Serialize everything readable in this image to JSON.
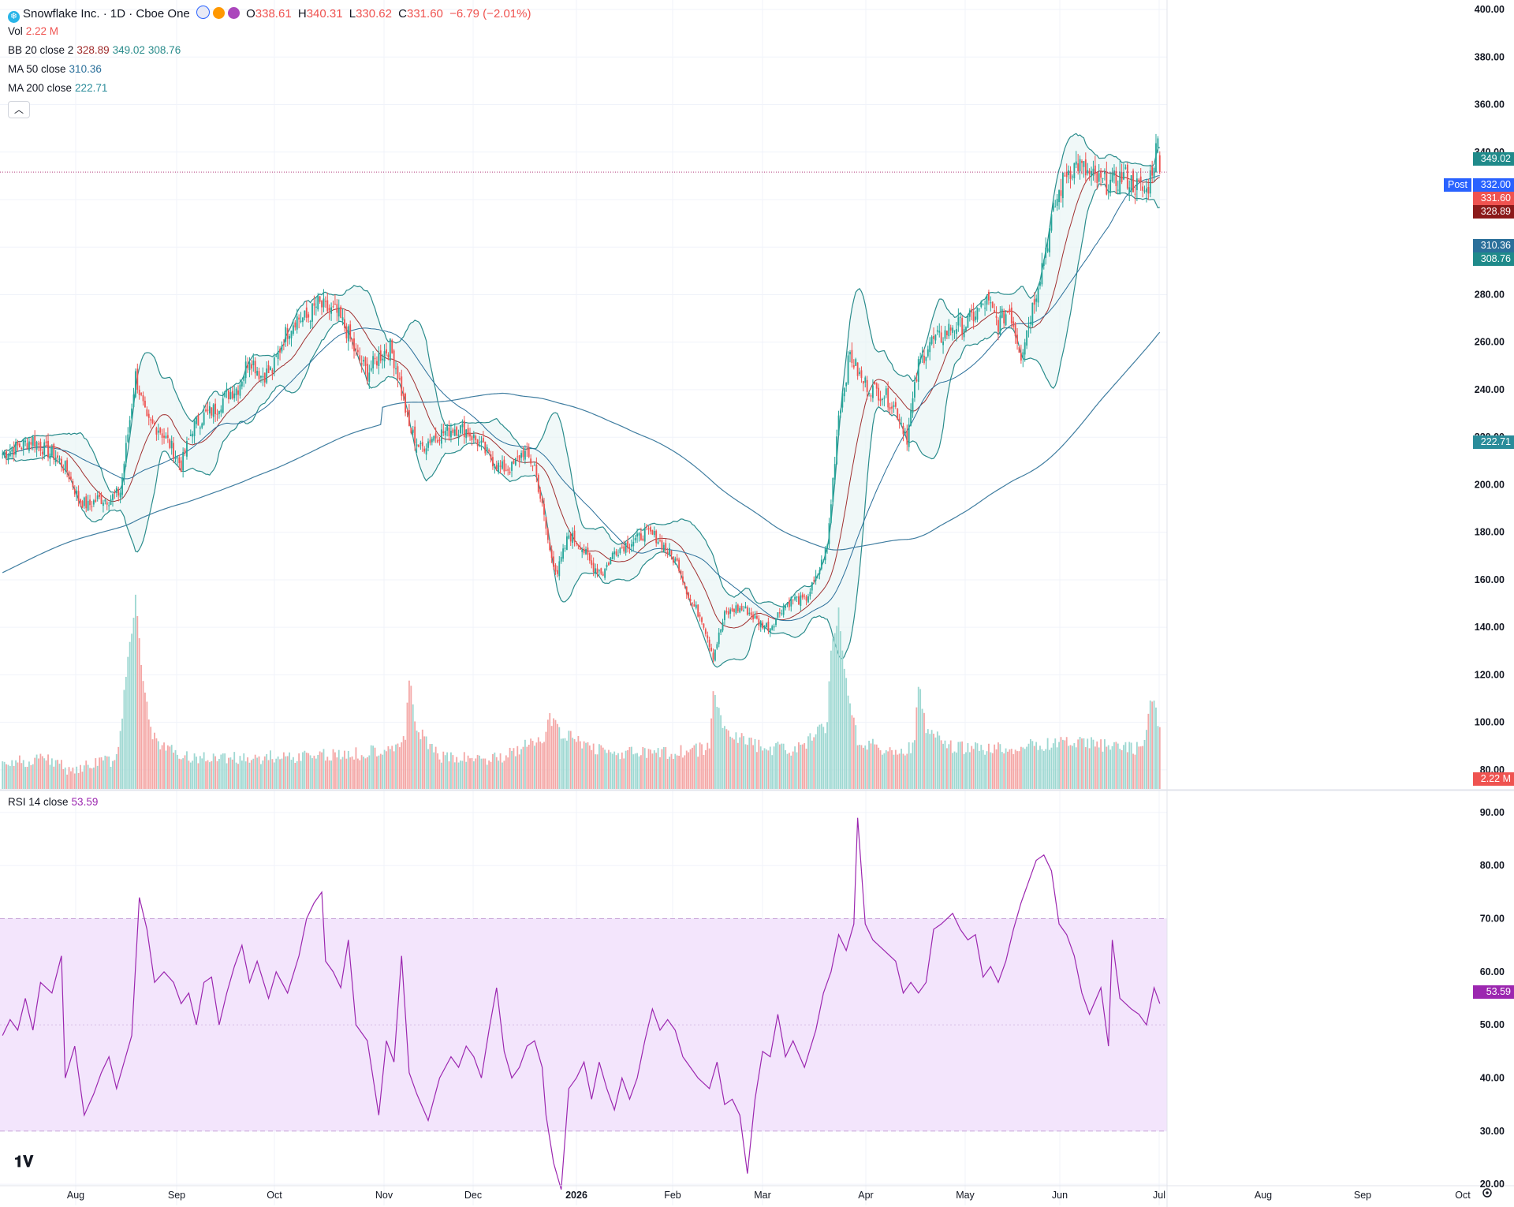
{
  "header": {
    "symbol_title": "Snowflake Inc. · 1D · Cboe One",
    "ohlc": [
      {
        "k": "O",
        "v": "338.61"
      },
      {
        "k": "H",
        "v": "340.31"
      },
      {
        "k": "L",
        "v": "330.62"
      },
      {
        "k": "C",
        "v": "331.60"
      }
    ],
    "change": "−6.79 (−2.01%)",
    "colors": {
      "up": "#26a69a",
      "down": "#ef5350",
      "bb": "#2a8c8c",
      "ma50": "#2a6f9a",
      "ma200": "#3f7da0",
      "rsi": "#9c27b0"
    }
  },
  "indicators": {
    "vol": {
      "label": "Vol",
      "value": "2.22 M"
    },
    "bb": {
      "label": "BB 20 close 2",
      "basis": "328.89",
      "upper": "349.02",
      "lower": "308.76"
    },
    "ma50": {
      "label": "MA 50 close",
      "value": "310.36"
    },
    "ma200": {
      "label": "MA 200 close",
      "value": "222.71"
    },
    "rsi": {
      "label": "RSI 14 close",
      "value": "53.59"
    }
  },
  "price_tags": {
    "post_label": "Post",
    "post_price": "332.00",
    "last": "331.60",
    "bb_upper": "349.02",
    "bb_basis": "328.89",
    "ma50": "310.36",
    "bb_lower": "308.76",
    "ma200": "222.71",
    "volume": "2.22 M",
    "rsi": "53.59"
  },
  "chart_data": {
    "type": "candlestick",
    "price_axis": {
      "ticks": [
        "400.00",
        "380.00",
        "360.00",
        "340.00",
        "320.00",
        "300.00",
        "280.00",
        "260.00",
        "240.00",
        "220.00",
        "200.00",
        "180.00",
        "160.00",
        "140.00",
        "120.00",
        "100.00",
        "80.00"
      ],
      "range": [
        72,
        404
      ]
    },
    "rsi_axis": {
      "ticks": [
        "90.00",
        "80.00",
        "70.00",
        "60.00",
        "50.00",
        "40.00",
        "30.00",
        "20.00"
      ],
      "range": [
        16,
        94
      ],
      "band": [
        30,
        70
      ]
    },
    "time_axis": {
      "labels": [
        "Aug",
        "Sep",
        "Oct",
        "Nov",
        "Dec",
        "2026",
        "Feb",
        "Mar",
        "Apr",
        "May",
        "Jun",
        "Jul",
        "Aug",
        "Sep",
        "Oct"
      ]
    },
    "price_anchors": [
      [
        0,
        213
      ],
      [
        8,
        216
      ],
      [
        16,
        219
      ],
      [
        22,
        215
      ],
      [
        28,
        212
      ],
      [
        34,
        206
      ],
      [
        40,
        194
      ],
      [
        45,
        191
      ],
      [
        50,
        194
      ],
      [
        56,
        194
      ],
      [
        62,
        197
      ],
      [
        70,
        246
      ],
      [
        76,
        226
      ],
      [
        82,
        224
      ],
      [
        88,
        217
      ],
      [
        94,
        208
      ],
      [
        100,
        224
      ],
      [
        106,
        229
      ],
      [
        112,
        232
      ],
      [
        118,
        238
      ],
      [
        124,
        241
      ],
      [
        130,
        254
      ],
      [
        136,
        246
      ],
      [
        142,
        248
      ],
      [
        148,
        262
      ],
      [
        154,
        270
      ],
      [
        160,
        270
      ],
      [
        166,
        276
      ],
      [
        170,
        274
      ],
      [
        176,
        272
      ],
      [
        181,
        265
      ],
      [
        186,
        255
      ],
      [
        192,
        247
      ],
      [
        198,
        254
      ],
      [
        204,
        258
      ],
      [
        208,
        247
      ],
      [
        214,
        224
      ],
      [
        220,
        215
      ],
      [
        226,
        220
      ],
      [
        232,
        222
      ],
      [
        238,
        224
      ],
      [
        244,
        223
      ],
      [
        250,
        218
      ],
      [
        256,
        212
      ],
      [
        262,
        207
      ],
      [
        268,
        207
      ],
      [
        274,
        214
      ],
      [
        280,
        208
      ],
      [
        285,
        186
      ],
      [
        288,
        172
      ],
      [
        292,
        163
      ],
      [
        298,
        179
      ],
      [
        304,
        175
      ],
      [
        310,
        166
      ],
      [
        316,
        163
      ],
      [
        322,
        172
      ],
      [
        328,
        175
      ],
      [
        334,
        177
      ],
      [
        338,
        180
      ],
      [
        344,
        178
      ],
      [
        350,
        172
      ],
      [
        356,
        166
      ],
      [
        362,
        151
      ],
      [
        368,
        144
      ],
      [
        374,
        128
      ],
      [
        380,
        145
      ],
      [
        386,
        148
      ],
      [
        392,
        147
      ],
      [
        398,
        142
      ],
      [
        404,
        140
      ],
      [
        410,
        148
      ],
      [
        416,
        152
      ],
      [
        422,
        151
      ],
      [
        428,
        160
      ],
      [
        434,
        174
      ],
      [
        440,
        230
      ],
      [
        446,
        255
      ],
      [
        452,
        244
      ],
      [
        458,
        240
      ],
      [
        464,
        238
      ],
      [
        470,
        232
      ],
      [
        476,
        220
      ],
      [
        482,
        250
      ],
      [
        488,
        260
      ],
      [
        494,
        262
      ],
      [
        500,
        267
      ],
      [
        506,
        267
      ],
      [
        512,
        272
      ],
      [
        518,
        277
      ],
      [
        524,
        268
      ],
      [
        530,
        274
      ],
      [
        536,
        255
      ],
      [
        542,
        275
      ],
      [
        548,
        296
      ],
      [
        554,
        318
      ],
      [
        560,
        332
      ],
      [
        566,
        335
      ],
      [
        572,
        330
      ],
      [
        578,
        327
      ],
      [
        584,
        327
      ],
      [
        590,
        330
      ],
      [
        596,
        326
      ],
      [
        602,
        323
      ],
      [
        608,
        344
      ],
      [
        612,
        332
      ],
      [
        616,
        330
      ],
      [
        620,
        325
      ],
      [
        624,
        331
      ],
      [
        628,
        331
      ]
    ],
    "volume_anchors": [
      [
        0,
        88
      ],
      [
        8,
        86
      ],
      [
        16,
        87
      ],
      [
        22,
        90
      ],
      [
        28,
        85
      ],
      [
        34,
        84
      ],
      [
        40,
        83
      ],
      [
        50,
        86
      ],
      [
        60,
        87
      ],
      [
        70,
        155
      ],
      [
        74,
        120
      ],
      [
        78,
        100
      ],
      [
        84,
        92
      ],
      [
        100,
        88
      ],
      [
        130,
        88
      ],
      [
        160,
        89
      ],
      [
        190,
        90
      ],
      [
        212,
        95
      ],
      [
        214,
        122
      ],
      [
        218,
        100
      ],
      [
        230,
        88
      ],
      [
        260,
        88
      ],
      [
        285,
        96
      ],
      [
        288,
        105
      ],
      [
        294,
        98
      ],
      [
        320,
        90
      ],
      [
        350,
        90
      ],
      [
        372,
        92
      ],
      [
        374,
        115
      ],
      [
        380,
        100
      ],
      [
        400,
        92
      ],
      [
        420,
        92
      ],
      [
        434,
        102
      ],
      [
        436,
        135
      ],
      [
        440,
        150
      ],
      [
        444,
        120
      ],
      [
        450,
        96
      ],
      [
        470,
        90
      ],
      [
        480,
        93
      ],
      [
        482,
        120
      ],
      [
        486,
        100
      ],
      [
        500,
        92
      ],
      [
        530,
        92
      ],
      [
        560,
        95
      ],
      [
        600,
        92
      ],
      [
        604,
        110
      ],
      [
        606,
        112
      ],
      [
        610,
        95
      ],
      [
        628,
        90
      ]
    ],
    "rsi_anchors": [
      [
        0,
        48
      ],
      [
        4,
        51
      ],
      [
        8,
        49
      ],
      [
        12,
        55
      ],
      [
        16,
        49
      ],
      [
        20,
        58
      ],
      [
        26,
        56
      ],
      [
        31,
        63
      ],
      [
        33,
        40
      ],
      [
        38,
        46
      ],
      [
        43,
        33
      ],
      [
        48,
        37
      ],
      [
        52,
        41
      ],
      [
        56,
        44
      ],
      [
        60,
        38
      ],
      [
        64,
        43
      ],
      [
        68,
        48
      ],
      [
        72,
        74
      ],
      [
        76,
        68
      ],
      [
        80,
        58
      ],
      [
        85,
        60
      ],
      [
        90,
        58
      ],
      [
        94,
        54
      ],
      [
        98,
        56
      ],
      [
        102,
        50
      ],
      [
        106,
        58
      ],
      [
        110,
        59
      ],
      [
        114,
        50
      ],
      [
        118,
        56
      ],
      [
        122,
        61
      ],
      [
        126,
        65
      ],
      [
        130,
        58
      ],
      [
        134,
        62
      ],
      [
        140,
        55
      ],
      [
        144,
        60
      ],
      [
        150,
        56
      ],
      [
        156,
        63
      ],
      [
        160,
        70
      ],
      [
        164,
        73
      ],
      [
        168,
        75
      ],
      [
        170,
        62
      ],
      [
        174,
        60
      ],
      [
        178,
        57
      ],
      [
        182,
        66
      ],
      [
        186,
        50
      ],
      [
        192,
        47
      ],
      [
        198,
        33
      ],
      [
        202,
        47
      ],
      [
        206,
        43
      ],
      [
        210,
        63
      ],
      [
        214,
        41
      ],
      [
        218,
        37
      ],
      [
        224,
        32
      ],
      [
        230,
        40
      ],
      [
        236,
        44
      ],
      [
        240,
        42
      ],
      [
        244,
        46
      ],
      [
        248,
        44
      ],
      [
        252,
        40
      ],
      [
        256,
        49
      ],
      [
        260,
        57
      ],
      [
        264,
        45
      ],
      [
        268,
        40
      ],
      [
        272,
        42
      ],
      [
        276,
        46
      ],
      [
        280,
        47
      ],
      [
        284,
        42
      ],
      [
        286,
        33
      ],
      [
        290,
        24
      ],
      [
        294,
        19
      ],
      [
        298,
        38
      ],
      [
        302,
        40
      ],
      [
        306,
        43
      ],
      [
        310,
        36
      ],
      [
        314,
        43
      ],
      [
        318,
        38
      ],
      [
        322,
        34
      ],
      [
        326,
        40
      ],
      [
        330,
        36
      ],
      [
        334,
        40
      ],
      [
        338,
        47
      ],
      [
        342,
        53
      ],
      [
        346,
        49
      ],
      [
        350,
        51
      ],
      [
        354,
        49
      ],
      [
        358,
        44
      ],
      [
        362,
        42
      ],
      [
        366,
        40
      ],
      [
        372,
        38
      ],
      [
        376,
        43
      ],
      [
        380,
        35
      ],
      [
        384,
        36
      ],
      [
        388,
        33
      ],
      [
        392,
        22
      ],
      [
        396,
        36
      ],
      [
        400,
        45
      ],
      [
        404,
        44
      ],
      [
        408,
        52
      ],
      [
        412,
        44
      ],
      [
        416,
        47
      ],
      [
        422,
        42
      ],
      [
        428,
        49
      ],
      [
        432,
        56
      ],
      [
        436,
        60
      ],
      [
        440,
        67
      ],
      [
        444,
        64
      ],
      [
        448,
        69
      ],
      [
        450,
        89
      ],
      [
        454,
        69
      ],
      [
        458,
        66
      ],
      [
        464,
        64
      ],
      [
        470,
        62
      ],
      [
        474,
        56
      ],
      [
        478,
        58
      ],
      [
        482,
        56
      ],
      [
        486,
        58
      ],
      [
        490,
        68
      ],
      [
        494,
        69
      ],
      [
        500,
        71
      ],
      [
        504,
        68
      ],
      [
        508,
        66
      ],
      [
        512,
        67
      ],
      [
        516,
        59
      ],
      [
        520,
        61
      ],
      [
        524,
        58
      ],
      [
        528,
        62
      ],
      [
        532,
        68
      ],
      [
        536,
        73
      ],
      [
        540,
        77
      ],
      [
        544,
        81
      ],
      [
        548,
        82
      ],
      [
        552,
        79
      ],
      [
        556,
        69
      ],
      [
        560,
        67
      ],
      [
        564,
        63
      ],
      [
        568,
        56
      ],
      [
        572,
        52
      ],
      [
        578,
        57
      ],
      [
        582,
        46
      ],
      [
        584,
        66
      ],
      [
        588,
        55
      ],
      [
        594,
        53
      ],
      [
        598,
        52
      ],
      [
        602,
        50
      ],
      [
        606,
        57
      ],
      [
        610,
        53
      ]
    ],
    "candle_count": 610,
    "last_price": 331.6,
    "post_price": 332.0
  }
}
